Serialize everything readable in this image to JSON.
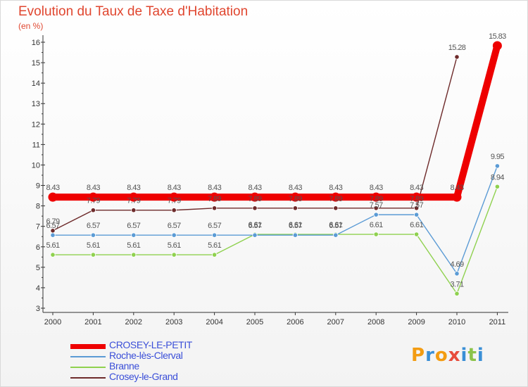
{
  "chart_data": {
    "type": "line",
    "title": "Evolution du Taux de Taxe d'Habitation",
    "ylabel": "(en %)",
    "xlabel": "",
    "x": [
      "2000",
      "2001",
      "2002",
      "2003",
      "2004",
      "2005",
      "2006",
      "2007",
      "2008",
      "2009",
      "2010",
      "2011"
    ],
    "yticks": [
      "3",
      "4",
      "5",
      "6",
      "7",
      "8",
      "9",
      "10",
      "11",
      "12",
      "13",
      "14",
      "15",
      "16"
    ],
    "ylim": [
      3,
      16
    ],
    "grid": false,
    "legend_position": "bottom-left",
    "series": [
      {
        "name": "CROSEY-LE-PETIT",
        "color": "#ee0000",
        "values": [
          8.43,
          8.43,
          8.43,
          8.43,
          8.43,
          8.43,
          8.43,
          8.43,
          8.43,
          8.43,
          8.43,
          15.83
        ],
        "labels": [
          "8.43",
          "8.43",
          "8.43",
          "8.43",
          "8.43",
          "8.43",
          "8.43",
          "8.43",
          "8.43",
          "8.43",
          "8.43",
          "15.83"
        ]
      },
      {
        "name": "Roche-lès-Clerval",
        "color": "#5b9bd5",
        "values": [
          6.57,
          6.57,
          6.57,
          6.57,
          6.57,
          6.57,
          6.57,
          6.57,
          7.57,
          7.57,
          4.69,
          9.95
        ],
        "labels": [
          "6.57",
          "6.57",
          "6.57",
          "6.57",
          "6.57",
          "6.57",
          "6.57",
          "6.57",
          "7.57",
          "7.57",
          "4.69",
          "9.95"
        ]
      },
      {
        "name": "Branne",
        "color": "#8fd14f",
        "values": [
          5.61,
          5.61,
          5.61,
          5.61,
          5.61,
          6.61,
          6.61,
          6.61,
          6.61,
          6.61,
          3.71,
          8.94
        ],
        "labels": [
          "5.61",
          "5.61",
          "5.61",
          "5.61",
          "5.61",
          "6.61",
          "6.61",
          "6.61",
          "6.61",
          "6.61",
          "3.71",
          "8.94"
        ]
      },
      {
        "name": "Crosey-le-Grand",
        "color": "#6e2b2b",
        "values": [
          6.79,
          7.79,
          7.79,
          7.79,
          7.89,
          7.89,
          7.89,
          7.89,
          7.89,
          7.89,
          15.28,
          null
        ],
        "labels": [
          "6.79",
          "7.79",
          "7.79",
          "7.79",
          "7.89",
          "7.89",
          "7.89",
          "7.89",
          "7.89",
          "7.89",
          "15.28",
          ""
        ]
      }
    ]
  },
  "logo": {
    "text": "Proxiti",
    "letters": [
      {
        "ch": "P",
        "color": "#f39c12"
      },
      {
        "ch": "r",
        "color": "#3a8fd6"
      },
      {
        "ch": "o",
        "color": "#f39c12"
      },
      {
        "ch": "x",
        "color": "#e74c3c"
      },
      {
        "ch": "i",
        "color": "#3a8fd6"
      },
      {
        "ch": "t",
        "color": "#8bc34a"
      },
      {
        "ch": "i",
        "color": "#3a8fd6"
      }
    ]
  }
}
